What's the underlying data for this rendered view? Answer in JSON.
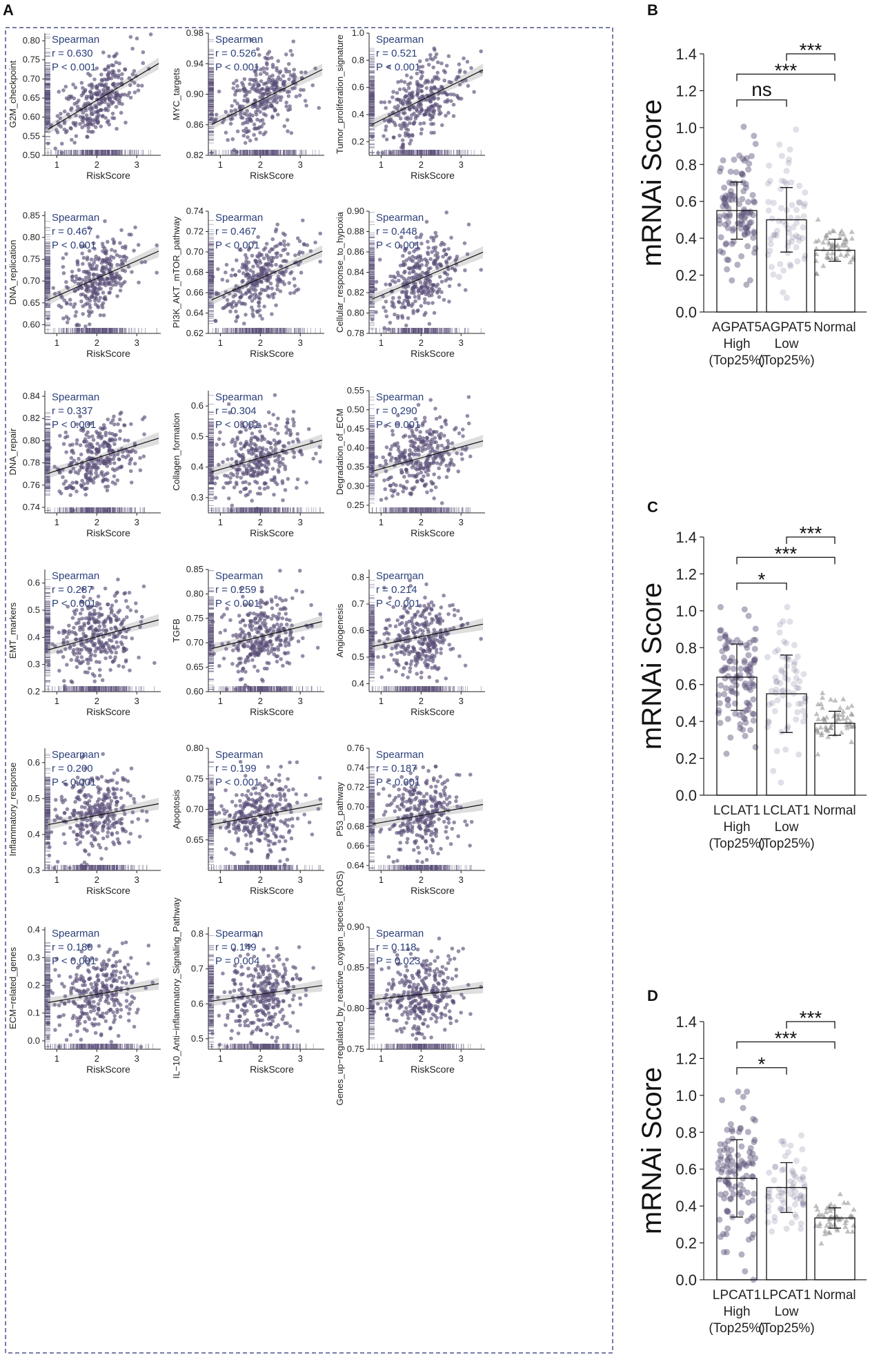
{
  "panel_labels": {
    "A": "A",
    "B": "B",
    "C": "C",
    "D": "D"
  },
  "chart_data": [
    {
      "panel": "A",
      "type": "scatter",
      "xlabel": "RiskScore",
      "xticks": [
        "1",
        "2",
        "3"
      ],
      "xlim": [
        0.7,
        3.6
      ],
      "stat_title": "Spearman",
      "subplots": [
        {
          "ylabel": "G2M_checkpoint",
          "ylim": [
            0.5,
            0.82
          ],
          "yticks": [
            "0.50",
            "0.55",
            "0.60",
            "0.65",
            "0.70",
            "0.75",
            "0.80"
          ],
          "r": "r = 0.630",
          "p": "P < 0.001",
          "rho": 0.63
        },
        {
          "ylabel": "MYC_targets",
          "ylim": [
            0.82,
            0.98
          ],
          "yticks": [
            "0.82",
            "0.86",
            "0.90",
            "0.94",
            "0.98"
          ],
          "r": "r = 0.526",
          "p": "P < 0.001",
          "rho": 0.526
        },
        {
          "ylabel": "Tumor_proliferation_signature",
          "ylim": [
            0.1,
            1.0
          ],
          "yticks": [
            "0.2",
            "0.4",
            "0.6",
            "0.8",
            "1.0"
          ],
          "r": "r = 0.521",
          "p": "P < 0.001",
          "rho": 0.521
        },
        {
          "ylabel": "DNA_replication",
          "ylim": [
            0.58,
            0.86
          ],
          "yticks": [
            "0.60",
            "0.65",
            "0.70",
            "0.75",
            "0.80",
            "0.85"
          ],
          "r": "r = 0.467",
          "p": "P < 0.001",
          "rho": 0.467
        },
        {
          "ylabel": "PI3K_AKT_mTOR_pathway",
          "ylim": [
            0.62,
            0.74
          ],
          "yticks": [
            "0.62",
            "0.64",
            "0.66",
            "0.68",
            "0.70",
            "0.72",
            "0.74"
          ],
          "r": "r = 0.467",
          "p": "P < 0.001",
          "rho": 0.467
        },
        {
          "ylabel": "Cellular_response_to_hypoxia",
          "ylim": [
            0.78,
            0.9
          ],
          "yticks": [
            "0.78",
            "0.80",
            "0.82",
            "0.84",
            "0.86",
            "0.88",
            "0.90"
          ],
          "r": "r = 0.448",
          "p": "P < 0.001",
          "rho": 0.448
        },
        {
          "ylabel": "DNA_repair",
          "ylim": [
            0.735,
            0.845
          ],
          "yticks": [
            "0.74",
            "0.76",
            "0.78",
            "0.80",
            "0.82",
            "0.84"
          ],
          "r": "r = 0.337",
          "p": "P < 0.001",
          "rho": 0.337
        },
        {
          "ylabel": "Collagen_formation",
          "ylim": [
            0.25,
            0.65
          ],
          "yticks": [
            "0.3",
            "0.4",
            "0.5",
            "0.6"
          ],
          "r": "r = 0.304",
          "p": "P < 0.001",
          "rho": 0.304
        },
        {
          "ylabel": "Degradation_of_ECM",
          "ylim": [
            0.23,
            0.55
          ],
          "yticks": [
            "0.25",
            "0.30",
            "0.35",
            "0.40",
            "0.45",
            "0.50",
            "0.55"
          ],
          "r": "r = 0.290",
          "p": "P < 0.001",
          "rho": 0.29
        },
        {
          "ylabel": "EMT_markers",
          "ylim": [
            0.2,
            0.65
          ],
          "yticks": [
            "0.2",
            "0.3",
            "0.4",
            "0.5",
            "0.6"
          ],
          "r": "r = 0.287",
          "p": "P < 0.001",
          "rho": 0.287
        },
        {
          "ylabel": "TGFB",
          "ylim": [
            0.6,
            0.85
          ],
          "yticks": [
            "0.60",
            "0.65",
            "0.70",
            "0.75",
            "0.80",
            "0.85"
          ],
          "r": "r = 0.259",
          "p": "P < 0.001",
          "rho": 0.259
        },
        {
          "ylabel": "Angiogenesis",
          "ylim": [
            0.37,
            0.83
          ],
          "yticks": [
            "0.4",
            "0.5",
            "0.6",
            "0.7",
            "0.8"
          ],
          "r": "r = 0.214",
          "p": "P < 0.001",
          "rho": 0.214
        },
        {
          "ylabel": "Inflammatory_response",
          "ylim": [
            0.3,
            0.64
          ],
          "yticks": [
            "0.3",
            "0.4",
            "0.5",
            "0.6"
          ],
          "r": "r = 0.200",
          "p": "P < 0.001",
          "rho": 0.2
        },
        {
          "ylabel": "Apoptosis",
          "ylim": [
            0.6,
            0.8
          ],
          "yticks": [
            "0.65",
            "0.70",
            "0.75",
            "0.80"
          ],
          "r": "r = 0.199",
          "p": "P < 0.001",
          "rho": 0.199
        },
        {
          "ylabel": "P53_pathway",
          "ylim": [
            0.635,
            0.76
          ],
          "yticks": [
            "0.64",
            "0.66",
            "0.68",
            "0.70",
            "0.72",
            "0.74",
            "0.76"
          ],
          "r": "r = 0.187",
          "p": "P < 0.001",
          "rho": 0.187
        },
        {
          "ylabel": "ECM−related_genes",
          "ylim": [
            -0.03,
            0.41
          ],
          "yticks": [
            "0.0",
            "0.1",
            "0.2",
            "0.3",
            "0.4"
          ],
          "r": "r = 0.180",
          "p": "P < 0.001",
          "rho": 0.18
        },
        {
          "ylabel": "IL−10_Anti−inflammatory_Signaling_Pathway",
          "ylim": [
            0.47,
            0.82
          ],
          "yticks": [
            "0.5",
            "0.6",
            "0.7",
            "0.8"
          ],
          "r": "r = 0.149",
          "p": "P = 0.004",
          "rho": 0.149
        },
        {
          "ylabel": "Genes_up−regulated_by_reactive_oxygen_species_(ROS)",
          "ylim": [
            0.75,
            0.9
          ],
          "yticks": [
            "0.75",
            "0.80",
            "0.85",
            "0.90"
          ],
          "r": "r = 0.118",
          "p": "P = 0.023",
          "rho": 0.118
        }
      ]
    },
    {
      "panel": "B",
      "type": "bar",
      "ylabel": "mRNAi Score",
      "ylim": [
        0,
        1.4
      ],
      "yticks": [
        "0.0",
        "0.2",
        "0.4",
        "0.6",
        "0.8",
        "1.0",
        "1.2",
        "1.4"
      ],
      "categories": [
        [
          "AGPAT5",
          "High",
          "(Top25%)"
        ],
        [
          "AGPAT5",
          "Low",
          "(Top25%)"
        ],
        [
          "Normal"
        ]
      ],
      "means": [
        0.55,
        0.5,
        0.335
      ],
      "sd": [
        0.155,
        0.175,
        0.06
      ],
      "comparisons": [
        {
          "from": 0,
          "to": 1,
          "label": "ns"
        },
        {
          "from": 0,
          "to": 2,
          "label": "***"
        },
        {
          "from": 1,
          "to": 2,
          "label": "***"
        }
      ]
    },
    {
      "panel": "C",
      "type": "bar",
      "ylabel": "mRNAi Score",
      "ylim": [
        0,
        1.4
      ],
      "yticks": [
        "0.0",
        "0.2",
        "0.4",
        "0.6",
        "0.8",
        "1.0",
        "1.2",
        "1.4"
      ],
      "categories": [
        [
          "LCLAT1",
          "High",
          "(Top25%)"
        ],
        [
          "LCLAT1",
          "Low",
          "(Top25%)"
        ],
        [
          "Normal"
        ]
      ],
      "means": [
        0.64,
        0.55,
        0.39
      ],
      "sd": [
        0.18,
        0.21,
        0.065
      ],
      "comparisons": [
        {
          "from": 0,
          "to": 1,
          "label": "*"
        },
        {
          "from": 0,
          "to": 2,
          "label": "***"
        },
        {
          "from": 1,
          "to": 2,
          "label": "***"
        }
      ]
    },
    {
      "panel": "D",
      "type": "bar",
      "ylabel": "mRNAi Score",
      "ylim": [
        0,
        1.4
      ],
      "yticks": [
        "0.0",
        "0.2",
        "0.4",
        "0.6",
        "0.8",
        "1.0",
        "1.2",
        "1.4"
      ],
      "categories": [
        [
          "LPCAT1",
          "High",
          "(Top25%)"
        ],
        [
          "LPCAT1",
          "Low",
          "(Top25%)"
        ],
        [
          "Normal"
        ]
      ],
      "means": [
        0.55,
        0.5,
        0.335
      ],
      "sd": [
        0.21,
        0.135,
        0.055
      ],
      "comparisons": [
        {
          "from": 0,
          "to": 1,
          "label": "*"
        },
        {
          "from": 0,
          "to": 2,
          "label": "***"
        },
        {
          "from": 1,
          "to": 2,
          "label": "***"
        }
      ]
    }
  ],
  "colors": {
    "points": "#5a4f78",
    "bar_edge": "#111111",
    "stat_text": "#2b3f7a",
    "frame": "#4a4e8a",
    "normal_points": "#8c8c8c"
  }
}
